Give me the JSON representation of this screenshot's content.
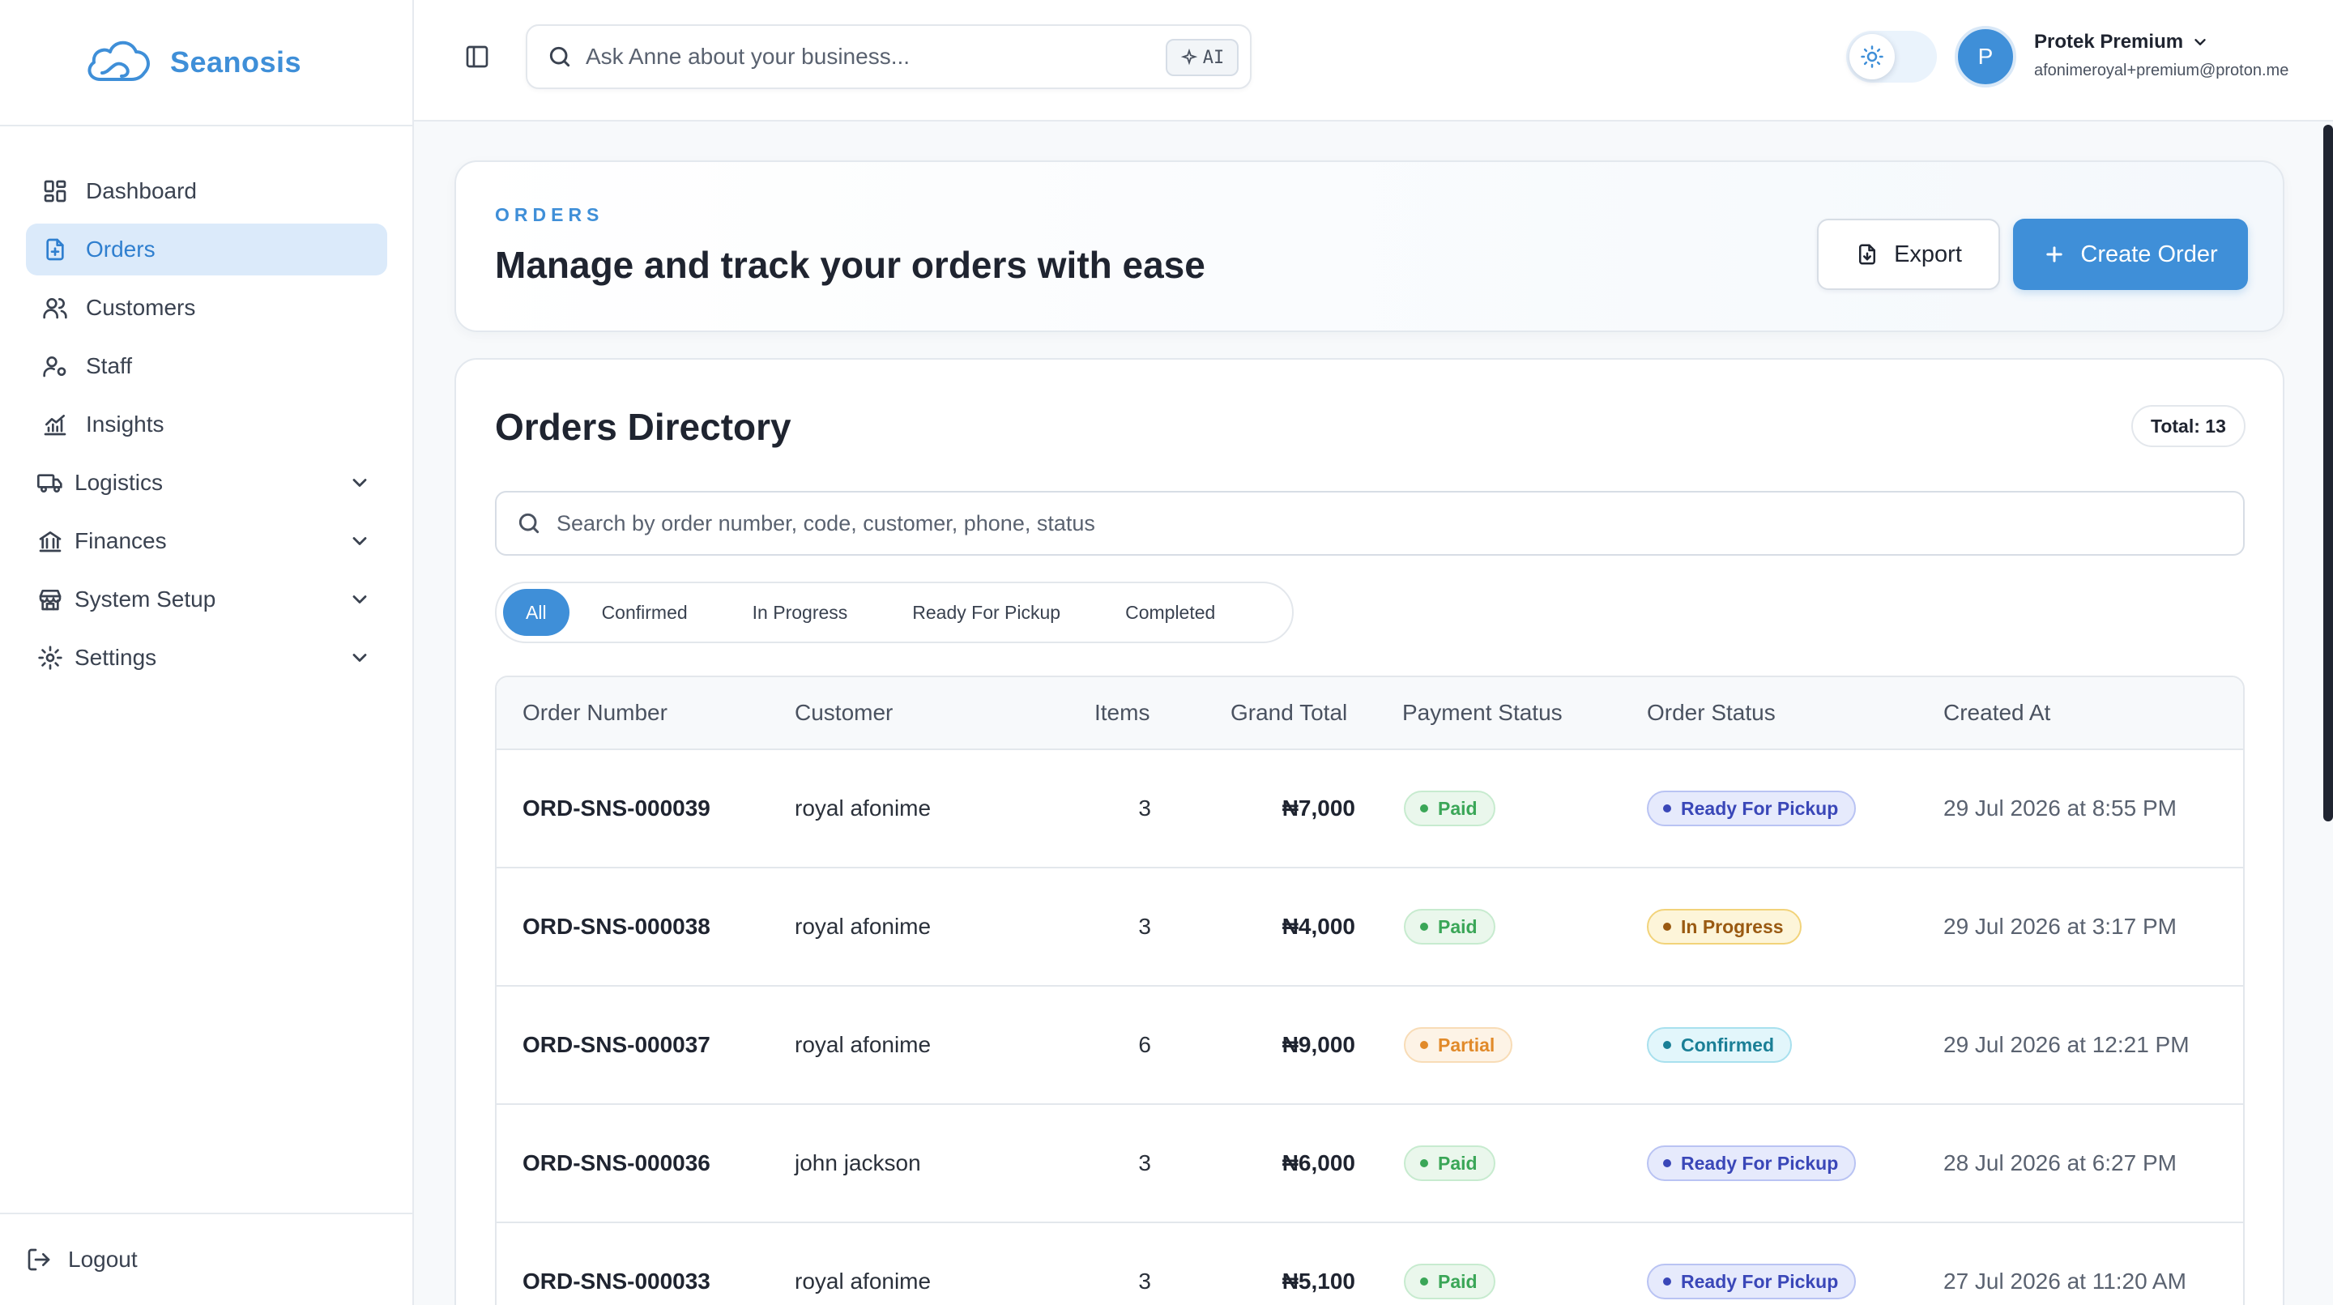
{
  "brand": {
    "name": "Seanosis"
  },
  "sidebar": {
    "items": [
      {
        "label": "Dashboard"
      },
      {
        "label": "Orders"
      },
      {
        "label": "Customers"
      },
      {
        "label": "Staff"
      },
      {
        "label": "Insights"
      },
      {
        "label": "Logistics"
      },
      {
        "label": "Finances"
      },
      {
        "label": "System Setup"
      },
      {
        "label": "Settings"
      }
    ],
    "logout": "Logout"
  },
  "topbar": {
    "ask_placeholder": "Ask Anne about your business...",
    "ai_badge": "AI",
    "user_initial": "P",
    "user_name": "Protek Premium",
    "user_email": "afonimeroyal+premium@proton.me"
  },
  "header": {
    "eyebrow": "ORDERS",
    "title": "Manage and track your orders with ease",
    "export_label": "Export",
    "create_label": "Create Order"
  },
  "directory": {
    "title": "Orders Directory",
    "total": "Total: 13",
    "search_placeholder": "Search by order number, code, customer, phone, status",
    "filters": [
      "All",
      "Confirmed",
      "In Progress",
      "Ready For Pickup",
      "Completed"
    ],
    "columns": [
      "Order Number",
      "Customer",
      "Items",
      "Grand Total",
      "Payment Status",
      "Order Status",
      "Created At"
    ],
    "rows": [
      {
        "order": "ORD-SNS-000039",
        "customer": "royal afonime",
        "items": "3",
        "total": "₦7,000",
        "payment": "Paid",
        "status": "Ready For Pickup",
        "created": "29 Jul 2026 at 8:55 PM"
      },
      {
        "order": "ORD-SNS-000038",
        "customer": "royal afonime",
        "items": "3",
        "total": "₦4,000",
        "payment": "Paid",
        "status": "In Progress",
        "created": "29 Jul 2026 at 3:17 PM"
      },
      {
        "order": "ORD-SNS-000037",
        "customer": "royal afonime",
        "items": "6",
        "total": "₦9,000",
        "payment": "Partial",
        "status": "Confirmed",
        "created": "29 Jul 2026 at 12:21 PM"
      },
      {
        "order": "ORD-SNS-000036",
        "customer": "john jackson",
        "items": "3",
        "total": "₦6,000",
        "payment": "Paid",
        "status": "Ready For Pickup",
        "created": "28 Jul 2026 at 6:27 PM"
      },
      {
        "order": "ORD-SNS-000033",
        "customer": "royal afonime",
        "items": "3",
        "total": "₦5,100",
        "payment": "Paid",
        "status": "Ready For Pickup",
        "created": "27 Jul 2026 at 11:20 AM"
      }
    ]
  },
  "colors": {
    "accent": "#3f8fd8",
    "paid": "#3aa657",
    "partial": "#e18a2a",
    "pickup": "#3a47b8",
    "progress": "#9a5a12",
    "confirmed": "#1a7f96"
  }
}
